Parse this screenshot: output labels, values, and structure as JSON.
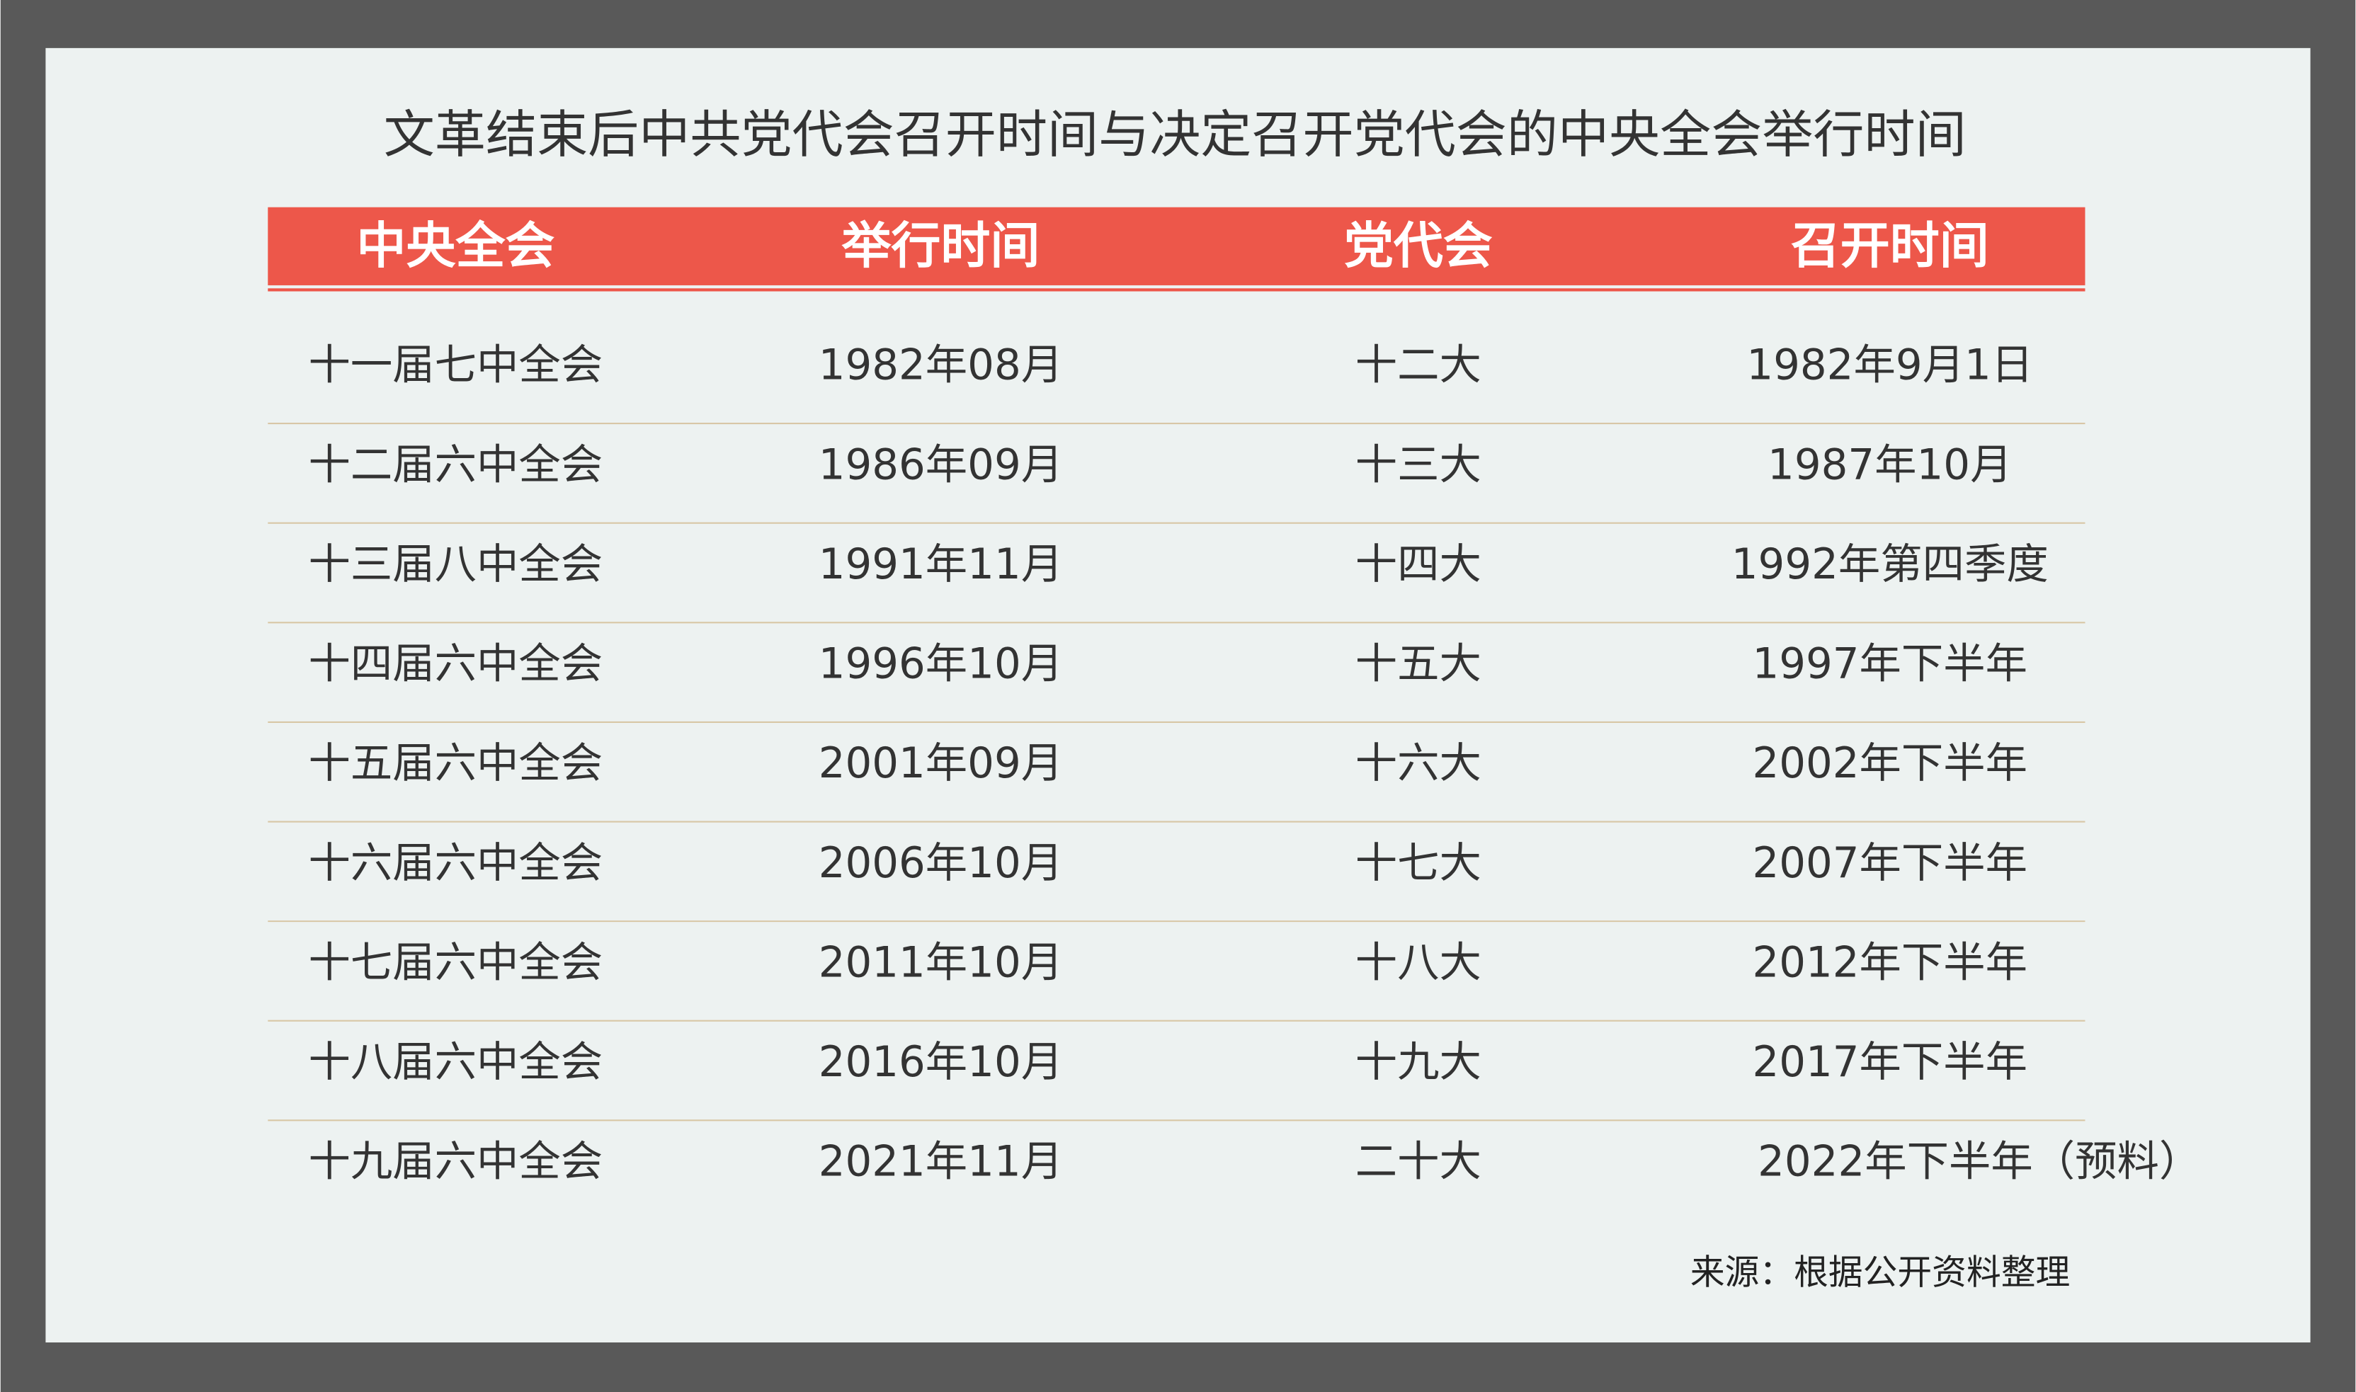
{
  "title": "文革结束后中共党代会召开时间与决定召开党代会的中央全会举行时间",
  "table": {
    "header": [
      "中央全会",
      "举行时间",
      "党代会",
      "召开时间"
    ],
    "rows": [
      [
        "十一届七中全会",
        "1982年08月",
        "十二大",
        "1982年9月1日"
      ],
      [
        "十二届六中全会",
        "1986年09月",
        "十三大",
        "1987年10月"
      ],
      [
        "十三届八中全会",
        "1991年11月",
        "十四大",
        "1992年第四季度"
      ],
      [
        "十四届六中全会",
        "1996年10月",
        "十五大",
        "1997年下半年"
      ],
      [
        "十五届六中全会",
        "2001年09月",
        "十六大",
        "2002年下半年"
      ],
      [
        "十六届六中全会",
        "2006年10月",
        "十七大",
        "2007年下半年"
      ],
      [
        "十七届六中全会",
        "2011年10月",
        "十八大",
        "2012年下半年"
      ],
      [
        "十八届六中全会",
        "2016年10月",
        "十九大",
        "2017年下半年"
      ],
      [
        "十九届六中全会",
        "2021年11月",
        "二十大",
        "2022年下半年（预料）"
      ]
    ]
  },
  "source": "来源：根据公开资料整理"
}
